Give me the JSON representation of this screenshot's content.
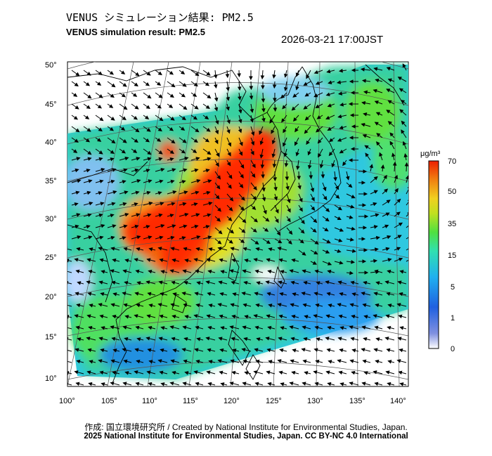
{
  "header": {
    "title_jp": "VENUS シミュレーション結果: PM2.5",
    "title_en": "VENUS simulation result: PM2.5",
    "timestamp": "2026-03-21 17:00JST"
  },
  "map": {
    "lon_ticks": [
      "100°",
      "105°",
      "110°",
      "115°",
      "120°",
      "125°",
      "130°",
      "135°",
      "140°"
    ],
    "lat_ticks": [
      "50°",
      "45°",
      "40°",
      "35°",
      "30°",
      "25°",
      "20°",
      "15°",
      "10°"
    ],
    "lon_range": [
      100,
      142
    ],
    "lat_range": [
      9,
      51
    ],
    "field": "PM2.5 concentration with wind vectors"
  },
  "colorbar": {
    "unit": "μg/m³",
    "ticks": [
      "70",
      "50",
      "35",
      "15",
      "5",
      "1",
      "0"
    ],
    "colors": [
      "#ffffff",
      "#3050d0",
      "#2aa0f0",
      "#40e060",
      "#f0e020",
      "#f06010",
      "#ee2000"
    ]
  },
  "footer": {
    "credit": "作成: 国立環境研究所 / Created by National Institute for Environmental Studies, Japan.",
    "license": "2025 National Institute for Environmental Studies, Japan. CC BY-NC 4.0 International"
  }
}
